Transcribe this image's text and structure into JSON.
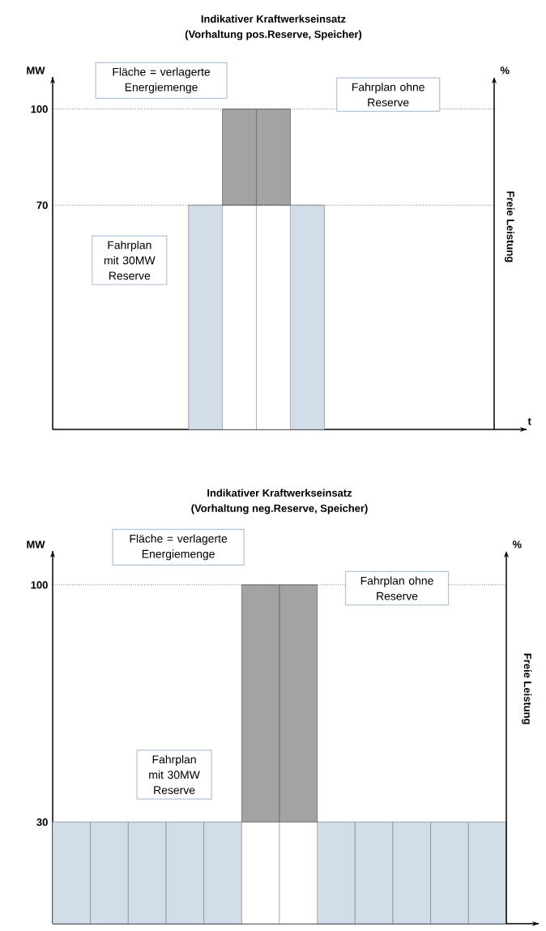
{
  "chart_data": [
    {
      "type": "bar",
      "title": "Indikativer Kraftwerkseinsatz",
      "subtitle": "(Vorhaltung pos.Reserve, Speicher)",
      "ylabel": "MW",
      "y2label": "%",
      "xlabel": "t",
      "categories": [
        null,
        null,
        null,
        null,
        null,
        null,
        null,
        null,
        null,
        null,
        null,
        null,
        null
      ],
      "stacked": true,
      "series": [
        {
          "color": "#d3dde9",
          "values": [
            null,
            null,
            null,
            null,
            70,
            null,
            null,
            70,
            null,
            null,
            null,
            null,
            null
          ]
        },
        {
          "color": "#ffffff",
          "values": [
            null,
            null,
            null,
            null,
            null,
            70,
            70,
            null,
            null,
            null,
            null,
            null,
            null
          ]
        },
        {
          "color": "#a3a3a3",
          "values": [
            null,
            null,
            null,
            null,
            null,
            30,
            30,
            null,
            null,
            null,
            null,
            null,
            null
          ]
        }
      ],
      "ylim": [
        0,
        110
      ],
      "yticks": [
        70,
        100
      ],
      "tick_labels": "y",
      "ref_lines": [
        {
          "axis": "y",
          "value": 100,
          "line_style": "dotted"
        },
        {
          "axis": "y",
          "value": 70,
          "line_style": "dotted"
        }
      ],
      "annotations": [
        "Fläche = verlagerte Energiemenge",
        "Fahrplan ohne Reserve",
        "Fahrplan mit 30MW Reserve",
        "Freie Leistung"
      ]
    },
    {
      "type": "bar",
      "title": "Indikativer Kraftwerkseinsatz",
      "subtitle": "(Vorhaltung neg.Reserve, Speicher)",
      "ylabel": "MW",
      "y2label": "%",
      "categories": [
        null,
        null,
        null,
        null,
        null,
        null,
        null,
        null,
        null,
        null,
        null,
        null
      ],
      "stacked": true,
      "series": [
        {
          "color": "#d3dde9",
          "values": [
            30,
            30,
            30,
            30,
            30,
            null,
            null,
            30,
            30,
            30,
            30,
            30
          ]
        },
        {
          "color": "#ffffff",
          "values": [
            null,
            null,
            null,
            null,
            null,
            30,
            30,
            null,
            null,
            null,
            null,
            null
          ]
        },
        {
          "color": "#a3a3a3",
          "values": [
            null,
            null,
            null,
            null,
            null,
            70,
            70,
            null,
            null,
            null,
            null,
            null
          ]
        }
      ],
      "ylim": [
        0,
        110
      ],
      "yticks": [
        30,
        100
      ],
      "tick_labels": "y",
      "ref_lines": [
        {
          "axis": "y",
          "value": 100,
          "line_style": "dotted"
        }
      ],
      "annotations": [
        "Fläche = verlagerte Energiemenge",
        "Fahrplan ohne Reserve",
        "Fahrplan mit 30MW Reserve",
        "Freie Leistung"
      ]
    }
  ]
}
